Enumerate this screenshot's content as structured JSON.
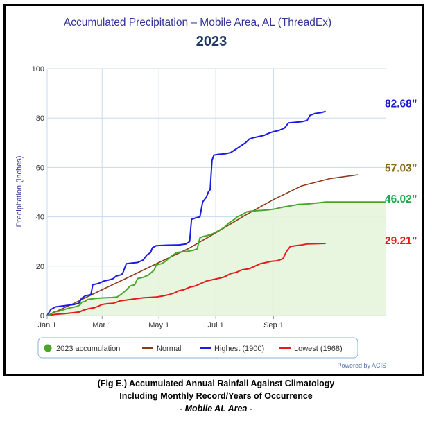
{
  "chart_data": {
    "type": "line",
    "title": "Accumulated Precipitation – Mobile Area, AL (ThreadEx)",
    "subtitle": "2023",
    "ylabel": "Precipitation (inches)",
    "xlabel": "",
    "ylim": [
      0,
      100
    ],
    "yticks": [
      "0",
      "20",
      "40",
      "60",
      "80",
      "100"
    ],
    "xticks": [
      {
        "label": "Jan 1",
        "day": 1
      },
      {
        "label": "Mar 1",
        "day": 60
      },
      {
        "label": "May 1",
        "day": 121
      },
      {
        "label": "Jul 1",
        "day": 182
      },
      {
        "label": "Sep 1",
        "day": 244
      }
    ],
    "xlim": [
      1,
      365
    ],
    "grid": true,
    "legend_position": "bottom",
    "credit": "Powered by ACIS",
    "series": [
      {
        "name": "2023 accumulation",
        "color": "#4aa52a",
        "fill": "#e6f4dc",
        "marker": "circle",
        "end_label": "46.02”",
        "end_label_color": "#1aa84a",
        "points": [
          [
            1,
            0
          ],
          [
            5,
            0.5
          ],
          [
            8,
            1.5
          ],
          [
            14,
            1.8
          ],
          [
            20,
            2.5
          ],
          [
            26,
            3.2
          ],
          [
            32,
            3.6
          ],
          [
            36,
            4.2
          ],
          [
            38,
            5.4
          ],
          [
            42,
            5.8
          ],
          [
            44,
            6.5
          ],
          [
            50,
            6.8
          ],
          [
            54,
            7.0
          ],
          [
            58,
            7.1
          ],
          [
            62,
            7.2
          ],
          [
            70,
            7.3
          ],
          [
            76,
            7.5
          ],
          [
            80,
            8.5
          ],
          [
            85,
            10
          ],
          [
            90,
            12
          ],
          [
            95,
            12.5
          ],
          [
            98,
            15
          ],
          [
            104,
            15.5
          ],
          [
            110,
            16.5
          ],
          [
            114,
            17.8
          ],
          [
            116,
            18.5
          ],
          [
            118,
            20.5
          ],
          [
            124,
            21
          ],
          [
            128,
            22
          ],
          [
            134,
            24
          ],
          [
            140,
            25.5
          ],
          [
            145,
            25.8
          ],
          [
            152,
            26
          ],
          [
            158,
            26.5
          ],
          [
            162,
            27
          ],
          [
            165,
            31.5
          ],
          [
            168,
            32
          ],
          [
            172,
            32.3
          ],
          [
            178,
            33
          ],
          [
            183,
            34
          ],
          [
            188,
            35
          ],
          [
            192,
            36
          ],
          [
            196,
            37.5
          ],
          [
            198,
            38
          ],
          [
            202,
            39
          ],
          [
            205,
            40
          ],
          [
            210,
            40.8
          ],
          [
            215,
            42
          ],
          [
            220,
            42.3
          ],
          [
            226,
            42.5
          ],
          [
            232,
            42.6
          ],
          [
            238,
            42.8
          ],
          [
            242,
            43
          ],
          [
            246,
            43.2
          ],
          [
            250,
            43.6
          ],
          [
            255,
            44
          ],
          [
            260,
            44.3
          ],
          [
            265,
            44.6
          ],
          [
            270,
            45
          ],
          [
            280,
            45.2
          ],
          [
            290,
            45.6
          ],
          [
            300,
            46.02
          ]
        ]
      },
      {
        "name": "Normal",
        "color": "#8b3a1a",
        "end_label": "57.03”",
        "end_label_color": "#8b6914",
        "points": [
          [
            1,
            0
          ],
          [
            30,
            5
          ],
          [
            60,
            10.5
          ],
          [
            91,
            16
          ],
          [
            121,
            21.5
          ],
          [
            152,
            27
          ],
          [
            182,
            33.5
          ],
          [
            213,
            40.5
          ],
          [
            244,
            47
          ],
          [
            274,
            52.5
          ],
          [
            305,
            55.5
          ],
          [
            335,
            57.03
          ]
        ]
      },
      {
        "name": "Highest (1900)",
        "color": "#1a1ae6",
        "end_label": "82.68”",
        "end_label_color": "#1a1acc",
        "points": [
          [
            1,
            0
          ],
          [
            5,
            2.5
          ],
          [
            10,
            3.5
          ],
          [
            20,
            4
          ],
          [
            30,
            4.5
          ],
          [
            35,
            5
          ],
          [
            38,
            7
          ],
          [
            42,
            8
          ],
          [
            48,
            8.5
          ],
          [
            50,
            12.5
          ],
          [
            56,
            13
          ],
          [
            62,
            14
          ],
          [
            68,
            14.5
          ],
          [
            72,
            15
          ],
          [
            75,
            16
          ],
          [
            80,
            16.5
          ],
          [
            82,
            17
          ],
          [
            86,
            21
          ],
          [
            92,
            21.3
          ],
          [
            98,
            21.5
          ],
          [
            104,
            22.5
          ],
          [
            108,
            24.5
          ],
          [
            112,
            25.5
          ],
          [
            114,
            27.5
          ],
          [
            118,
            28.3
          ],
          [
            130,
            28.5
          ],
          [
            142,
            28.6
          ],
          [
            150,
            29
          ],
          [
            154,
            30
          ],
          [
            156,
            39
          ],
          [
            160,
            39.5
          ],
          [
            165,
            40
          ],
          [
            168,
            46
          ],
          [
            172,
            48
          ],
          [
            174,
            50
          ],
          [
            176,
            51
          ],
          [
            178,
            63
          ],
          [
            180,
            65
          ],
          [
            185,
            65.3
          ],
          [
            192,
            65.5
          ],
          [
            198,
            66
          ],
          [
            202,
            67
          ],
          [
            206,
            68
          ],
          [
            210,
            69
          ],
          [
            214,
            70
          ],
          [
            218,
            71.5
          ],
          [
            222,
            72
          ],
          [
            228,
            72.5
          ],
          [
            234,
            73
          ],
          [
            240,
            74
          ],
          [
            244,
            74.5
          ],
          [
            250,
            75
          ],
          [
            256,
            76
          ],
          [
            260,
            78
          ],
          [
            268,
            78.3
          ],
          [
            274,
            78.5
          ],
          [
            280,
            79
          ],
          [
            283,
            81
          ],
          [
            288,
            81.8
          ],
          [
            295,
            82.2
          ],
          [
            300,
            82.68
          ]
        ]
      },
      {
        "name": "Lowest (1968)",
        "color": "#e61a1a",
        "end_label": "29.21”",
        "end_label_color": "#e61a1a",
        "points": [
          [
            1,
            0
          ],
          [
            10,
            0.5
          ],
          [
            20,
            0.8
          ],
          [
            30,
            1.2
          ],
          [
            36,
            1.5
          ],
          [
            40,
            2.2
          ],
          [
            46,
            2.8
          ],
          [
            52,
            3.2
          ],
          [
            56,
            3.8
          ],
          [
            60,
            4.5
          ],
          [
            66,
            4.8
          ],
          [
            72,
            5
          ],
          [
            76,
            5.5
          ],
          [
            80,
            6
          ],
          [
            86,
            6.3
          ],
          [
            92,
            6.6
          ],
          [
            98,
            6.9
          ],
          [
            104,
            7.2
          ],
          [
            112,
            7.4
          ],
          [
            118,
            7.5
          ],
          [
            126,
            8
          ],
          [
            132,
            8.5
          ],
          [
            138,
            9.2
          ],
          [
            142,
            10
          ],
          [
            148,
            10.5
          ],
          [
            154,
            11.5
          ],
          [
            160,
            12
          ],
          [
            166,
            13
          ],
          [
            172,
            14
          ],
          [
            178,
            14.5
          ],
          [
            184,
            15
          ],
          [
            190,
            15.5
          ],
          [
            194,
            16.2
          ],
          [
            198,
            17
          ],
          [
            204,
            17.5
          ],
          [
            210,
            18.5
          ],
          [
            218,
            19
          ],
          [
            224,
            20
          ],
          [
            230,
            21
          ],
          [
            236,
            21.5
          ],
          [
            242,
            22
          ],
          [
            248,
            22.2
          ],
          [
            254,
            23
          ],
          [
            258,
            26
          ],
          [
            262,
            28
          ],
          [
            268,
            28.3
          ],
          [
            274,
            28.6
          ],
          [
            280,
            29
          ],
          [
            290,
            29.1
          ],
          [
            300,
            29.21
          ]
        ]
      }
    ]
  },
  "caption": {
    "line1": "(Fig E.) Accumulated Annual Rainfall Against  Climatology",
    "line2": "Including Monthly Record/Years of Occurrence",
    "line3": "- Mobile AL Area -"
  }
}
